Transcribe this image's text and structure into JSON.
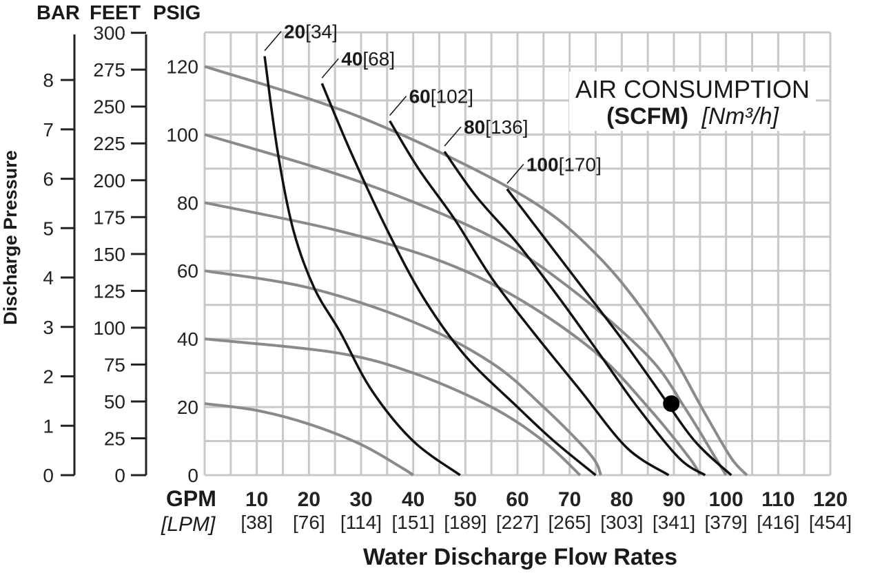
{
  "chart_data": {
    "type": "line",
    "left_axis_units": [
      "BAR",
      "FEET",
      "PSIG"
    ],
    "bar_ticks": [
      "0",
      "1",
      "2",
      "3",
      "4",
      "5",
      "6",
      "7",
      "8"
    ],
    "feet_ticks": [
      "0",
      "25",
      "50",
      "75",
      "100",
      "125",
      "150",
      "175",
      "200",
      "225",
      "250",
      "275",
      "300"
    ],
    "psig_ticks": [
      "0",
      "20",
      "40",
      "60",
      "80",
      "100",
      "120"
    ],
    "x_unit": "GPM",
    "x_unit_alt": "[LPM]",
    "x_ticks": [
      "10",
      "20",
      "30",
      "40",
      "50",
      "60",
      "70",
      "80",
      "90",
      "100",
      "110",
      "120"
    ],
    "x_ticks_alt": [
      "[38]",
      "[76]",
      "[114]",
      "[151]",
      "[189]",
      "[227]",
      "[265]",
      "[303]",
      "[341]",
      "[379]",
      "[416]",
      "[454]"
    ],
    "ylabel": "Discharge Pressure",
    "xlabel": "Water Discharge Flow Rates",
    "xlim": [
      0,
      120
    ],
    "ylim": [
      0,
      130
    ],
    "grid": true,
    "legend": {
      "line1": "AIR CONSUMPTION",
      "line2_bold": "(SCFM)",
      "line2_rest": "[Nm³/h]",
      "placement": "top-right"
    },
    "inlet_pressure_curves": [
      {
        "points": [
          [
            0,
            120
          ],
          [
            30,
            105
          ],
          [
            60,
            83
          ],
          [
            75,
            65
          ],
          [
            87,
            42
          ],
          [
            96,
            18
          ],
          [
            101,
            5
          ],
          [
            104,
            0
          ]
        ]
      },
      {
        "points": [
          [
            0,
            100
          ],
          [
            30,
            86
          ],
          [
            55,
            70
          ],
          [
            70,
            55
          ],
          [
            85,
            35
          ],
          [
            92,
            20
          ],
          [
            98,
            5
          ],
          [
            100,
            0
          ]
        ]
      },
      {
        "points": [
          [
            0,
            80
          ],
          [
            25,
            72
          ],
          [
            45,
            63
          ],
          [
            60,
            52
          ],
          [
            75,
            36
          ],
          [
            85,
            20
          ],
          [
            93,
            5
          ],
          [
            95,
            0
          ]
        ]
      },
      {
        "points": [
          [
            0,
            60
          ],
          [
            20,
            55
          ],
          [
            40,
            45
          ],
          [
            55,
            33
          ],
          [
            65,
            20
          ],
          [
            74,
            6
          ],
          [
            76,
            0
          ]
        ]
      },
      {
        "points": [
          [
            0,
            40
          ],
          [
            25,
            36
          ],
          [
            40,
            30
          ],
          [
            55,
            20
          ],
          [
            65,
            10
          ],
          [
            72,
            0
          ]
        ]
      },
      {
        "points": [
          [
            0,
            21
          ],
          [
            10,
            19
          ],
          [
            20,
            15
          ],
          [
            30,
            9
          ],
          [
            38,
            2
          ],
          [
            40,
            0
          ]
        ]
      }
    ],
    "air_consumption_curves": [
      {
        "scfm": "20",
        "nm3h": "[34]",
        "points": [
          [
            11.5,
            123
          ],
          [
            14,
            95
          ],
          [
            17,
            72
          ],
          [
            21,
            55
          ],
          [
            26,
            42
          ],
          [
            32,
            25
          ],
          [
            40,
            10
          ],
          [
            49,
            0
          ]
        ]
      },
      {
        "scfm": "40",
        "nm3h": "[68]",
        "points": [
          [
            22.5,
            115
          ],
          [
            28,
            95
          ],
          [
            35,
            72
          ],
          [
            42,
            52
          ],
          [
            50,
            35
          ],
          [
            60,
            20
          ],
          [
            67,
            10
          ],
          [
            75,
            0
          ]
        ]
      },
      {
        "scfm": "60",
        "nm3h": "[102]",
        "points": [
          [
            35.5,
            104
          ],
          [
            41,
            90
          ],
          [
            48,
            75
          ],
          [
            55,
            58
          ],
          [
            63,
            42
          ],
          [
            72,
            25
          ],
          [
            81,
            8
          ],
          [
            89,
            0
          ]
        ]
      },
      {
        "scfm": "80",
        "nm3h": "[136]",
        "points": [
          [
            46,
            95
          ],
          [
            52,
            82
          ],
          [
            60,
            68
          ],
          [
            68,
            52
          ],
          [
            76,
            35
          ],
          [
            83,
            20
          ],
          [
            91,
            5
          ],
          [
            96,
            0
          ]
        ]
      },
      {
        "scfm": "100",
        "nm3h": "[170]",
        "points": [
          [
            58,
            84
          ],
          [
            64,
            72
          ],
          [
            72,
            56
          ],
          [
            80,
            40
          ],
          [
            87,
            25
          ],
          [
            94,
            10
          ],
          [
            101,
            0
          ]
        ]
      }
    ],
    "marker": {
      "x": 89.5,
      "y": 21
    }
  }
}
